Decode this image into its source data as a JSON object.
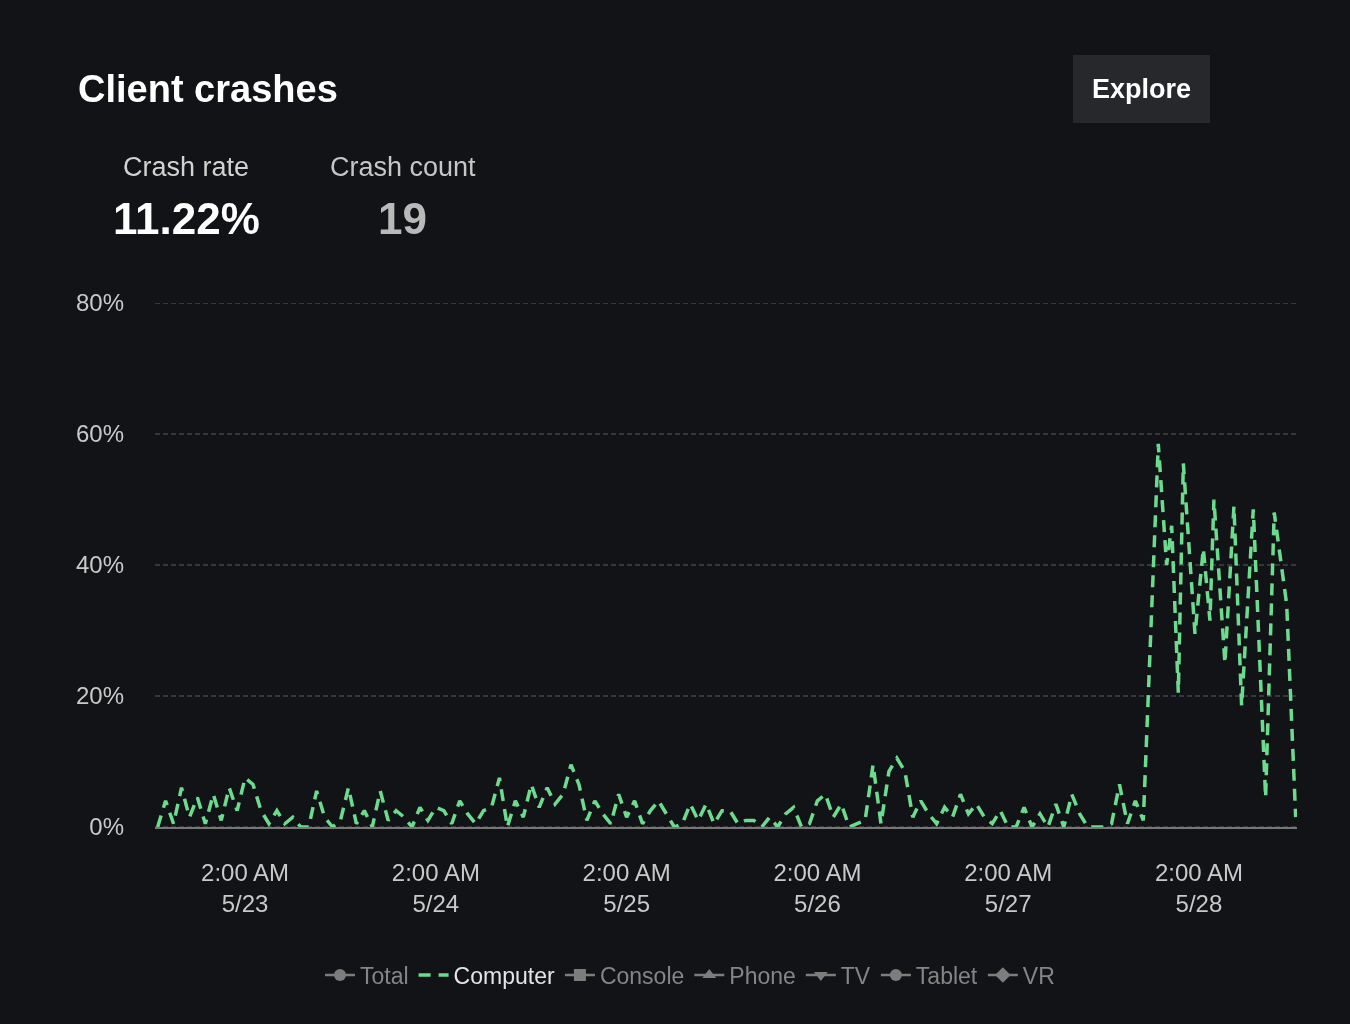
{
  "chart_data": {
    "type": "line",
    "title": "Client crashes",
    "annotations": [
      "Crash rate",
      "11.22%",
      "Crash count",
      "19",
      "Explore"
    ],
    "x": [
      "--05-22T15:00",
      "--05-22T16:00",
      "--05-22T17:00",
      "--05-22T18:00",
      "--05-22T19:00",
      "--05-22T20:00",
      "--05-22T21:00",
      "--05-22T22:00",
      "--05-22T23:00",
      "--05-23T00:00",
      "--05-23T01:00",
      "--05-23T02:00",
      "--05-23T03:00",
      "--05-23T04:00",
      "--05-23T05:00",
      "--05-23T06:00",
      "--05-23T07:00",
      "--05-23T08:00",
      "--05-23T09:00",
      "--05-23T10:00",
      "--05-23T11:00",
      "--05-23T12:00",
      "--05-23T13:00",
      "--05-23T14:00",
      "--05-23T15:00",
      "--05-23T16:00",
      "--05-23T17:00",
      "--05-23T18:00",
      "--05-23T19:00",
      "--05-23T20:00",
      "--05-23T21:00",
      "--05-23T22:00",
      "--05-23T23:00",
      "--05-24T00:00",
      "--05-24T01:00",
      "--05-24T02:00",
      "--05-24T03:00",
      "--05-24T04:00",
      "--05-24T05:00",
      "--05-24T06:00",
      "--05-24T07:00",
      "--05-24T08:00",
      "--05-24T09:00",
      "--05-24T10:00",
      "--05-24T11:00",
      "--05-24T12:00",
      "--05-24T13:00",
      "--05-24T14:00",
      "--05-24T15:00",
      "--05-24T16:00",
      "--05-24T17:00",
      "--05-24T18:00",
      "--05-24T19:00",
      "--05-24T20:00",
      "--05-24T21:00",
      "--05-24T22:00",
      "--05-24T23:00",
      "--05-25T00:00",
      "--05-25T01:00",
      "--05-25T02:00",
      "--05-25T03:00",
      "--05-25T04:00",
      "--05-25T05:00",
      "--05-25T06:00",
      "--05-25T07:00",
      "--05-25T08:00",
      "--05-25T09:00",
      "--05-25T10:00",
      "--05-25T11:00",
      "--05-25T12:00",
      "--05-25T13:00",
      "--05-25T14:00",
      "--05-25T15:00",
      "--05-25T16:00",
      "--05-25T17:00",
      "--05-25T18:00",
      "--05-25T19:00",
      "--05-25T20:00",
      "--05-25T21:00",
      "--05-25T22:00",
      "--05-25T23:00",
      "--05-26T00:00",
      "--05-26T01:00",
      "--05-26T02:00",
      "--05-26T03:00",
      "--05-26T04:00",
      "--05-26T05:00",
      "--05-26T06:00",
      "--05-26T07:00",
      "--05-26T08:00",
      "--05-26T09:00",
      "--05-26T10:00",
      "--05-26T11:00",
      "--05-26T12:00",
      "--05-26T13:00",
      "--05-26T14:00",
      "--05-26T15:00",
      "--05-26T16:00",
      "--05-26T17:00",
      "--05-26T18:00",
      "--05-26T19:00",
      "--05-26T20:00",
      "--05-26T21:00",
      "--05-26T22:00",
      "--05-26T23:00",
      "--05-27T00:00",
      "--05-27T01:00",
      "--05-27T02:00",
      "--05-27T03:00",
      "--05-27T04:00",
      "--05-27T05:00",
      "--05-27T06:00",
      "--05-27T07:00",
      "--05-27T08:00",
      "--05-27T09:00",
      "--05-27T10:00",
      "--05-27T11:00",
      "--05-27T12:00",
      "--05-27T13:00",
      "--05-27T14:00",
      "--05-27T15:00",
      "--05-27T16:00",
      "--05-27T17:00",
      "--05-27T18:00",
      "--05-27T19:00",
      "--05-27T20:53",
      "--05-27T21:56",
      "--05-27T22:34",
      "--05-27T23:24",
      "--05-28T00:02",
      "--05-28T01:30",
      "--05-28T02:33",
      "--05-28T03:23",
      "--05-28T03:53",
      "--05-28T05:16",
      "--05-28T06:24",
      "--05-28T07:22",
      "--05-28T08:50",
      "--05-28T10:23",
      "--05-28T11:28",
      "--05-28T13:02",
      "--05-28T14:10"
    ],
    "series": [
      {
        "name": "Total",
        "color": "#7d7d7d",
        "marker": "circle",
        "values": [
          null,
          null,
          null,
          null,
          null,
          null,
          null,
          null,
          null,
          null,
          null,
          null,
          null,
          null,
          null,
          null,
          null,
          null,
          null,
          null,
          null,
          null,
          null,
          null,
          null,
          null,
          null,
          null,
          null,
          null,
          null,
          null,
          null,
          null,
          null,
          null,
          null,
          null,
          null,
          null,
          null,
          null,
          null,
          null,
          null,
          null,
          null,
          null,
          null,
          null,
          null,
          null,
          null,
          null,
          null,
          null,
          null,
          null,
          null,
          null,
          null,
          null,
          null,
          null,
          null,
          null,
          null,
          null,
          null,
          null,
          null,
          null,
          null,
          null,
          null,
          null,
          null,
          null,
          null,
          null,
          null,
          null,
          null,
          null,
          null,
          null,
          null,
          null,
          null,
          null,
          null,
          null,
          null,
          null,
          null,
          null,
          null,
          null,
          null,
          null,
          null,
          null,
          null,
          null,
          null,
          null,
          null,
          null,
          null,
          null,
          null,
          null,
          null,
          null,
          null,
          null,
          null,
          null,
          null,
          null,
          null,
          null,
          null,
          null,
          null,
          null,
          null,
          null,
          null,
          null,
          null,
          null,
          null,
          null,
          null,
          null,
          null,
          null,
          null,
          null,
          null,
          null
        ]
      },
      {
        "name": "Computer",
        "color": "#6cdb8e",
        "line_style": "dashed",
        "values": [
          0,
          4,
          0.5,
          6,
          1.5,
          4.5,
          0.5,
          5,
          1,
          6,
          2.5,
          7.5,
          6.5,
          2.5,
          0.5,
          2.5,
          0.5,
          1.5,
          0,
          0,
          5.5,
          1.5,
          0,
          1,
          6,
          0.5,
          2.5,
          0,
          5.5,
          1,
          2.5,
          1.5,
          0,
          3,
          1,
          3,
          2.5,
          0.5,
          4,
          2,
          0.5,
          2.5,
          3,
          7.5,
          0,
          4,
          1.5,
          6.5,
          3,
          6,
          3.5,
          5,
          9.5,
          6.5,
          1,
          4,
          2,
          0.5,
          5,
          1.5,
          4,
          0.5,
          2.5,
          4,
          2,
          0,
          0.5,
          3.5,
          1,
          3.5,
          0.5,
          2.5,
          2.5,
          0.5,
          1,
          1,
          0,
          1.5,
          0,
          2,
          3,
          0,
          0.5,
          4,
          5,
          1.5,
          3.5,
          0,
          0.5,
          1,
          9.5,
          0.5,
          8.5,
          10.5,
          8.5,
          1.5,
          4,
          2,
          0.5,
          3,
          1.5,
          5,
          2,
          3.5,
          1.5,
          0.5,
          2.5,
          0,
          0,
          3,
          0,
          2,
          0,
          3.5,
          0,
          5,
          2,
          0,
          0,
          0,
          0.5,
          6.5,
          0.5,
          4,
          1,
          58.5,
          40,
          46,
          20.5,
          55.5,
          29.5,
          42.5,
          31.5,
          50,
          25,
          49,
          18.5,
          48.5,
          4.5,
          48,
          34,
          1.5
        ]
      },
      {
        "name": "Console",
        "color": "#7d7d7d",
        "marker": "square",
        "values": [
          null,
          null,
          null,
          null,
          null,
          null,
          null,
          null,
          null,
          null,
          null,
          null,
          null,
          null,
          null,
          null,
          null,
          null,
          null,
          null,
          null,
          null,
          null,
          null,
          null,
          null,
          null,
          null,
          null,
          null,
          null,
          null,
          null,
          null,
          null,
          null,
          null,
          null,
          null,
          null,
          null,
          null,
          null,
          null,
          null,
          null,
          null,
          null,
          null,
          null,
          null,
          null,
          null,
          null,
          null,
          null,
          null,
          null,
          null,
          null,
          null,
          null,
          null,
          null,
          null,
          null,
          null,
          null,
          null,
          null,
          null,
          null,
          null,
          null,
          null,
          null,
          null,
          null,
          null,
          null,
          null,
          null,
          null,
          null,
          null,
          null,
          null,
          null,
          null,
          null,
          null,
          null,
          null,
          null,
          null,
          null,
          null,
          null,
          null,
          null,
          null,
          null,
          null,
          null,
          null,
          null,
          null,
          null,
          null,
          null,
          null,
          null,
          null,
          null,
          null,
          null,
          null,
          null,
          null,
          null,
          null,
          null,
          null,
          null,
          null,
          null,
          null,
          null,
          null,
          null,
          null,
          null,
          null,
          null,
          null,
          null,
          null,
          null,
          null,
          null,
          null,
          null
        ]
      },
      {
        "name": "Phone",
        "color": "#7d7d7d",
        "marker": "triangle",
        "values": [
          null,
          null,
          null,
          null,
          null,
          null,
          null,
          null,
          null,
          null,
          null,
          null,
          null,
          null,
          null,
          null,
          null,
          null,
          null,
          null,
          null,
          null,
          null,
          null,
          null,
          null,
          null,
          null,
          null,
          null,
          null,
          null,
          null,
          null,
          null,
          null,
          null,
          null,
          null,
          null,
          null,
          null,
          null,
          null,
          null,
          null,
          null,
          null,
          null,
          null,
          null,
          null,
          null,
          null,
          null,
          null,
          null,
          null,
          null,
          null,
          null,
          null,
          null,
          null,
          null,
          null,
          null,
          null,
          null,
          null,
          null,
          null,
          null,
          null,
          null,
          null,
          null,
          null,
          null,
          null,
          null,
          null,
          null,
          null,
          null,
          null,
          null,
          null,
          null,
          null,
          null,
          null,
          null,
          null,
          null,
          null,
          null,
          null,
          null,
          null,
          null,
          null,
          null,
          null,
          null,
          null,
          null,
          null,
          null,
          null,
          null,
          null,
          null,
          null,
          null,
          null,
          null,
          null,
          null,
          null,
          null,
          null,
          null,
          null,
          null,
          null,
          null,
          null,
          null,
          null,
          null,
          null,
          null,
          null,
          null,
          null,
          null,
          null,
          null,
          null,
          null,
          null
        ]
      },
      {
        "name": "TV",
        "color": "#7d7d7d",
        "marker": "triangle-down",
        "values": [
          null,
          null,
          null,
          null,
          null,
          null,
          null,
          null,
          null,
          null,
          null,
          null,
          null,
          null,
          null,
          null,
          null,
          null,
          null,
          null,
          null,
          null,
          null,
          null,
          null,
          null,
          null,
          null,
          null,
          null,
          null,
          null,
          null,
          null,
          null,
          null,
          null,
          null,
          null,
          null,
          null,
          null,
          null,
          null,
          null,
          null,
          null,
          null,
          null,
          null,
          null,
          null,
          null,
          null,
          null,
          null,
          null,
          null,
          null,
          null,
          null,
          null,
          null,
          null,
          null,
          null,
          null,
          null,
          null,
          null,
          null,
          null,
          null,
          null,
          null,
          null,
          null,
          null,
          null,
          null,
          null,
          null,
          null,
          null,
          null,
          null,
          null,
          null,
          null,
          null,
          null,
          null,
          null,
          null,
          null,
          null,
          null,
          null,
          null,
          null,
          null,
          null,
          null,
          null,
          null,
          null,
          null,
          null,
          null,
          null,
          null,
          null,
          null,
          null,
          null,
          null,
          null,
          null,
          null,
          null,
          null,
          null,
          null,
          null,
          null,
          null,
          null,
          null,
          null,
          null,
          null,
          null,
          null,
          null,
          null,
          null,
          null,
          null,
          null,
          null,
          null,
          null
        ]
      },
      {
        "name": "Tablet",
        "color": "#7d7d7d",
        "marker": "circle",
        "values": [
          null,
          null,
          null,
          null,
          null,
          null,
          null,
          null,
          null,
          null,
          null,
          null,
          null,
          null,
          null,
          null,
          null,
          null,
          null,
          null,
          null,
          null,
          null,
          null,
          null,
          null,
          null,
          null,
          null,
          null,
          null,
          null,
          null,
          null,
          null,
          null,
          null,
          null,
          null,
          null,
          null,
          null,
          null,
          null,
          null,
          null,
          null,
          null,
          null,
          null,
          null,
          null,
          null,
          null,
          null,
          null,
          null,
          null,
          null,
          null,
          null,
          null,
          null,
          null,
          null,
          null,
          null,
          null,
          null,
          null,
          null,
          null,
          null,
          null,
          null,
          null,
          null,
          null,
          null,
          null,
          null,
          null,
          null,
          null,
          null,
          null,
          null,
          null,
          null,
          null,
          null,
          null,
          null,
          null,
          null,
          null,
          null,
          null,
          null,
          null,
          null,
          null,
          null,
          null,
          null,
          null,
          null,
          null,
          null,
          null,
          null,
          null,
          null,
          null,
          null,
          null,
          null,
          null,
          null,
          null,
          null,
          null,
          null,
          null,
          null,
          null,
          null,
          null,
          null,
          null,
          null,
          null,
          null,
          null,
          null,
          null,
          null,
          null,
          null,
          null,
          null,
          null
        ]
      },
      {
        "name": "VR",
        "color": "#7d7d7d",
        "marker": "diamond",
        "values": [
          null,
          null,
          null,
          null,
          null,
          null,
          null,
          null,
          null,
          null,
          null,
          null,
          null,
          null,
          null,
          null,
          null,
          null,
          null,
          null,
          null,
          null,
          null,
          null,
          null,
          null,
          null,
          null,
          null,
          null,
          null,
          null,
          null,
          null,
          null,
          null,
          null,
          null,
          null,
          null,
          null,
          null,
          null,
          null,
          null,
          null,
          null,
          null,
          null,
          null,
          null,
          null,
          null,
          null,
          null,
          null,
          null,
          null,
          null,
          null,
          null,
          null,
          null,
          null,
          null,
          null,
          null,
          null,
          null,
          null,
          null,
          null,
          null,
          null,
          null,
          null,
          null,
          null,
          null,
          null,
          null,
          null,
          null,
          null,
          null,
          null,
          null,
          null,
          null,
          null,
          null,
          null,
          null,
          null,
          null,
          null,
          null,
          null,
          null,
          null,
          null,
          null,
          null,
          null,
          null,
          null,
          null,
          null,
          null,
          null,
          null,
          null,
          null,
          null,
          null,
          null,
          null,
          null,
          null,
          null,
          null,
          null,
          null,
          null,
          null,
          null,
          null,
          null,
          null,
          null,
          null,
          null,
          null,
          null,
          null,
          null,
          null,
          null,
          null,
          null,
          null,
          null
        ]
      }
    ],
    "xlim": [
      "--05-22T14:40",
      "--05-28T14:20"
    ],
    "xticks": [
      {
        "value": "--05-23T02:00",
        "label": "2:00 AM\n5/23"
      },
      {
        "value": "--05-24T02:00",
        "label": "2:00 AM\n5/24"
      },
      {
        "value": "--05-25T02:00",
        "label": "2:00 AM\n5/25"
      },
      {
        "value": "--05-26T02:00",
        "label": "2:00 AM\n5/26"
      },
      {
        "value": "--05-27T02:00",
        "label": "2:00 AM\n5/27"
      },
      {
        "value": "--05-28T02:00",
        "label": "2:00 AM\n5/28"
      }
    ],
    "ylim": [
      0,
      80
    ],
    "yticks": [
      {
        "value": 0,
        "label": "0%"
      },
      {
        "value": 20,
        "label": "20%"
      },
      {
        "value": 40,
        "label": "40%"
      },
      {
        "value": 60,
        "label": "60%"
      },
      {
        "value": 80,
        "label": "80%"
      }
    ],
    "grid": "y",
    "legend": "bottom"
  }
}
